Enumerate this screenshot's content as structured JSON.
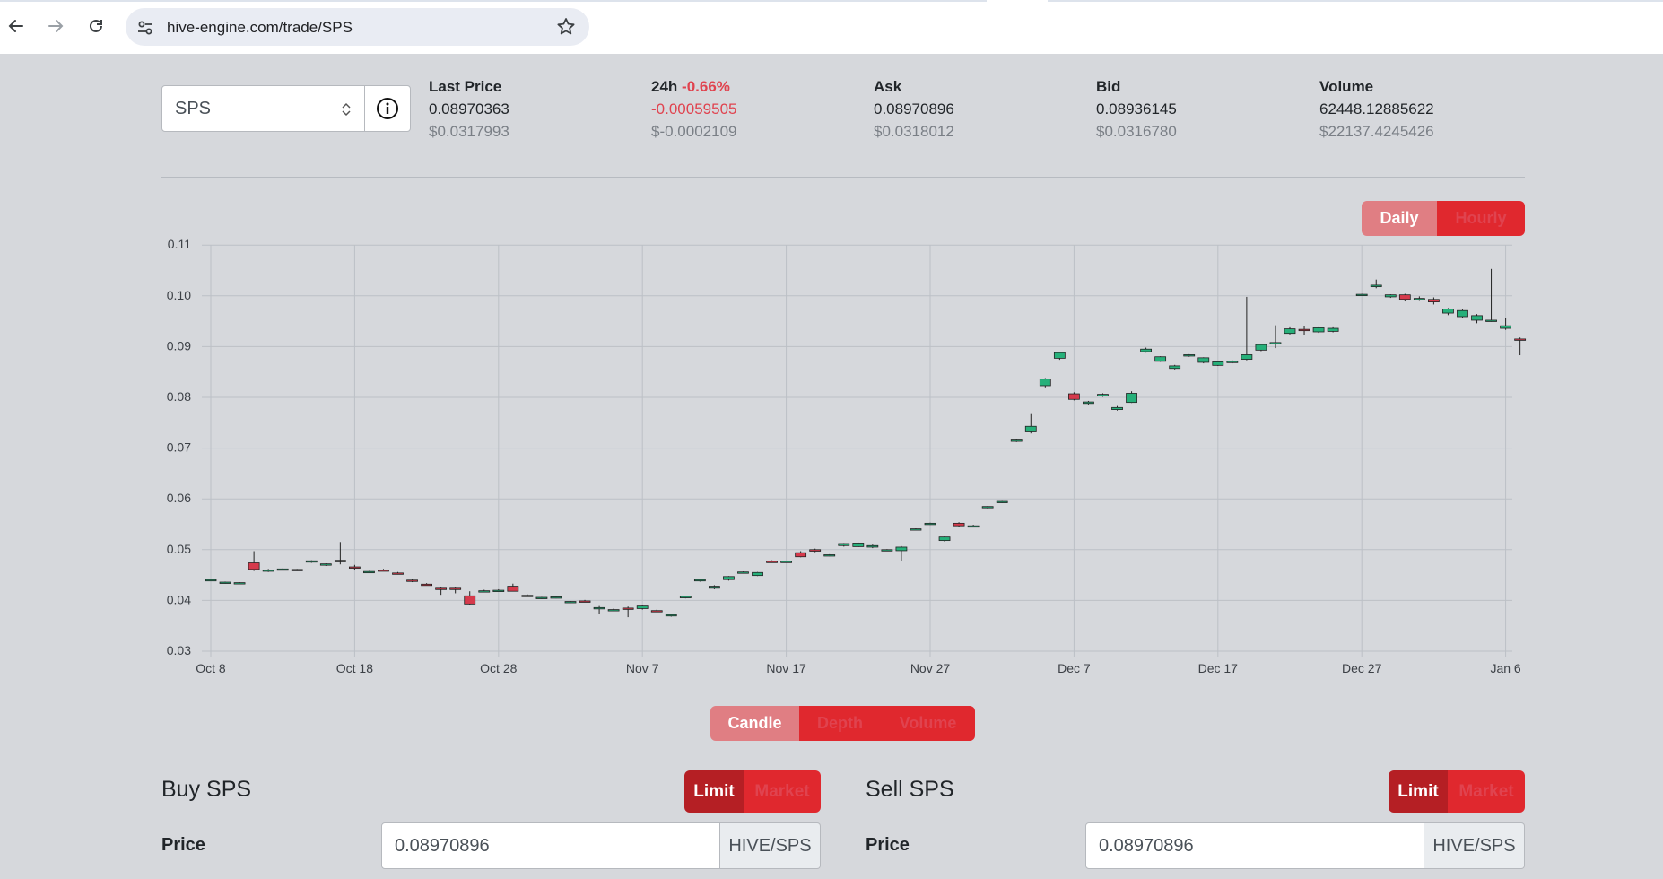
{
  "browser": {
    "url": "hive-engine.com/trade/SPS"
  },
  "market": {
    "token": "SPS",
    "stats": [
      {
        "label": "Last Price",
        "change": "",
        "v1": "0.08970363",
        "v2": "$0.0317993"
      },
      {
        "label": "24h",
        "change": "-0.66%",
        "v1": "-0.00059505",
        "v2": "$-0.0002109"
      },
      {
        "label": "Ask",
        "change": "",
        "v1": "0.08970896",
        "v2": "$0.0318012"
      },
      {
        "label": "Bid",
        "change": "",
        "v1": "0.08936145",
        "v2": "$0.0316780"
      },
      {
        "label": "Volume",
        "change": "",
        "v1": "62448.12885622",
        "v2": "$22137.4245426"
      }
    ]
  },
  "interval_toggle": {
    "daily": "Daily",
    "hourly": "Hourly",
    "active": "Hourly"
  },
  "view_toggle": {
    "candle": "Candle",
    "depth": "Depth",
    "volume": "Volume",
    "active": "Candle"
  },
  "colors": {
    "up": "#26b07a",
    "down": "#d63a4c",
    "accent": "#e0282e"
  },
  "chart_data": {
    "type": "candlestick",
    "title": "",
    "y_ticks": [
      "0.03",
      "0.04",
      "0.05",
      "0.06",
      "0.07",
      "0.08",
      "0.09",
      "0.10",
      "0.11"
    ],
    "ylim": [
      0.03,
      0.11
    ],
    "x_ticks": [
      "Oct 8",
      "Oct 18",
      "Oct 28",
      "Nov 7",
      "Nov 17",
      "Nov 27",
      "Dec 7",
      "Dec 17",
      "Dec 27",
      "Jan 6"
    ],
    "grid": true,
    "candles": [
      {
        "day": 0,
        "o": 0.044,
        "h": 0.0441,
        "l": 0.0438,
        "c": 0.0441
      },
      {
        "day": 1,
        "o": 0.0435,
        "h": 0.0437,
        "l": 0.0433,
        "c": 0.0436
      },
      {
        "day": 2,
        "o": 0.0434,
        "h": 0.0436,
        "l": 0.0432,
        "c": 0.0435
      },
      {
        "day": 3,
        "o": 0.0474,
        "h": 0.0497,
        "l": 0.0458,
        "c": 0.0461
      },
      {
        "day": 4,
        "o": 0.0459,
        "h": 0.0462,
        "l": 0.0456,
        "c": 0.046
      },
      {
        "day": 5,
        "o": 0.0461,
        "h": 0.0463,
        "l": 0.0459,
        "c": 0.0462
      },
      {
        "day": 6,
        "o": 0.046,
        "h": 0.0462,
        "l": 0.0458,
        "c": 0.0461
      },
      {
        "day": 7,
        "o": 0.0476,
        "h": 0.0479,
        "l": 0.0474,
        "c": 0.0478
      },
      {
        "day": 8,
        "o": 0.047,
        "h": 0.0473,
        "l": 0.0468,
        "c": 0.0472
      },
      {
        "day": 9,
        "o": 0.0479,
        "h": 0.0515,
        "l": 0.0471,
        "c": 0.0476
      },
      {
        "day": 10,
        "o": 0.0466,
        "h": 0.047,
        "l": 0.046,
        "c": 0.0464
      },
      {
        "day": 11,
        "o": 0.0456,
        "h": 0.0458,
        "l": 0.0454,
        "c": 0.0457
      },
      {
        "day": 12,
        "o": 0.046,
        "h": 0.0462,
        "l": 0.0458,
        "c": 0.0459
      },
      {
        "day": 13,
        "o": 0.0454,
        "h": 0.0456,
        "l": 0.0451,
        "c": 0.0452
      },
      {
        "day": 14,
        "o": 0.044,
        "h": 0.0443,
        "l": 0.0436,
        "c": 0.0439
      },
      {
        "day": 15,
        "o": 0.0432,
        "h": 0.0434,
        "l": 0.043,
        "c": 0.0431
      },
      {
        "day": 16,
        "o": 0.0424,
        "h": 0.0426,
        "l": 0.0411,
        "c": 0.0423
      },
      {
        "day": 17,
        "o": 0.0424,
        "h": 0.0426,
        "l": 0.0414,
        "c": 0.0422
      },
      {
        "day": 18,
        "o": 0.0409,
        "h": 0.0418,
        "l": 0.0392,
        "c": 0.0393
      },
      {
        "day": 19,
        "o": 0.0418,
        "h": 0.0421,
        "l": 0.0416,
        "c": 0.0419
      },
      {
        "day": 20,
        "o": 0.0419,
        "h": 0.0422,
        "l": 0.0417,
        "c": 0.042
      },
      {
        "day": 21,
        "o": 0.0428,
        "h": 0.0433,
        "l": 0.0418,
        "c": 0.0418
      },
      {
        "day": 22,
        "o": 0.041,
        "h": 0.0412,
        "l": 0.0408,
        "c": 0.0409
      },
      {
        "day": 23,
        "o": 0.0405,
        "h": 0.0407,
        "l": 0.0403,
        "c": 0.0406
      },
      {
        "day": 24,
        "o": 0.0406,
        "h": 0.0409,
        "l": 0.0404,
        "c": 0.0407
      },
      {
        "day": 25,
        "o": 0.0397,
        "h": 0.0399,
        "l": 0.0395,
        "c": 0.0398
      },
      {
        "day": 26,
        "o": 0.0399,
        "h": 0.0401,
        "l": 0.0397,
        "c": 0.0398
      },
      {
        "day": 27,
        "o": 0.0385,
        "h": 0.0389,
        "l": 0.0373,
        "c": 0.0386
      },
      {
        "day": 28,
        "o": 0.0381,
        "h": 0.0384,
        "l": 0.0379,
        "c": 0.0382
      },
      {
        "day": 29,
        "o": 0.0385,
        "h": 0.0388,
        "l": 0.0367,
        "c": 0.0384
      },
      {
        "day": 30,
        "o": 0.0384,
        "h": 0.039,
        "l": 0.0382,
        "c": 0.0389
      },
      {
        "day": 31,
        "o": 0.038,
        "h": 0.0382,
        "l": 0.0378,
        "c": 0.0379
      },
      {
        "day": 32,
        "o": 0.0371,
        "h": 0.0373,
        "l": 0.0368,
        "c": 0.0372
      },
      {
        "day": 33,
        "o": 0.0405,
        "h": 0.0409,
        "l": 0.0404,
        "c": 0.0408
      },
      {
        "day": 34,
        "o": 0.0439,
        "h": 0.0442,
        "l": 0.0437,
        "c": 0.0441
      },
      {
        "day": 35,
        "o": 0.0424,
        "h": 0.043,
        "l": 0.0422,
        "c": 0.0428
      },
      {
        "day": 36,
        "o": 0.0441,
        "h": 0.0448,
        "l": 0.0439,
        "c": 0.0447
      },
      {
        "day": 37,
        "o": 0.0455,
        "h": 0.0457,
        "l": 0.0453,
        "c": 0.0456
      },
      {
        "day": 38,
        "o": 0.0449,
        "h": 0.0456,
        "l": 0.0448,
        "c": 0.0455
      },
      {
        "day": 39,
        "o": 0.0477,
        "h": 0.0479,
        "l": 0.0474,
        "c": 0.0475
      },
      {
        "day": 40,
        "o": 0.0476,
        "h": 0.0478,
        "l": 0.0474,
        "c": 0.0477
      },
      {
        "day": 41,
        "o": 0.0494,
        "h": 0.0497,
        "l": 0.0485,
        "c": 0.0486
      },
      {
        "day": 42,
        "o": 0.05,
        "h": 0.0502,
        "l": 0.0495,
        "c": 0.0497
      },
      {
        "day": 43,
        "o": 0.0489,
        "h": 0.0491,
        "l": 0.0487,
        "c": 0.049
      },
      {
        "day": 44,
        "o": 0.0508,
        "h": 0.0513,
        "l": 0.0506,
        "c": 0.0512
      },
      {
        "day": 45,
        "o": 0.0506,
        "h": 0.0514,
        "l": 0.0505,
        "c": 0.0513
      },
      {
        "day": 46,
        "o": 0.0505,
        "h": 0.051,
        "l": 0.0503,
        "c": 0.0508
      },
      {
        "day": 47,
        "o": 0.0499,
        "h": 0.0501,
        "l": 0.0497,
        "c": 0.05
      },
      {
        "day": 48,
        "o": 0.0498,
        "h": 0.0507,
        "l": 0.0478,
        "c": 0.0505
      },
      {
        "day": 49,
        "o": 0.054,
        "h": 0.0542,
        "l": 0.0538,
        "c": 0.0541
      },
      {
        "day": 50,
        "o": 0.0551,
        "h": 0.0553,
        "l": 0.0549,
        "c": 0.0552
      },
      {
        "day": 51,
        "o": 0.0518,
        "h": 0.0526,
        "l": 0.0516,
        "c": 0.0525
      },
      {
        "day": 52,
        "o": 0.0552,
        "h": 0.0554,
        "l": 0.0545,
        "c": 0.0547
      },
      {
        "day": 53,
        "o": 0.0546,
        "h": 0.0549,
        "l": 0.0544,
        "c": 0.0547
      },
      {
        "day": 54,
        "o": 0.0583,
        "h": 0.0586,
        "l": 0.0581,
        "c": 0.0585
      },
      {
        "day": 55,
        "o": 0.0593,
        "h": 0.0596,
        "l": 0.0592,
        "c": 0.0595
      },
      {
        "day": 56,
        "o": 0.0715,
        "h": 0.0718,
        "l": 0.0712,
        "c": 0.0716
      },
      {
        "day": 57,
        "o": 0.0732,
        "h": 0.0767,
        "l": 0.0729,
        "c": 0.0743
      },
      {
        "day": 58,
        "o": 0.0823,
        "h": 0.0838,
        "l": 0.0818,
        "c": 0.0836
      },
      {
        "day": 59,
        "o": 0.0877,
        "h": 0.089,
        "l": 0.0874,
        "c": 0.0888
      },
      {
        "day": 60,
        "o": 0.0807,
        "h": 0.081,
        "l": 0.0794,
        "c": 0.0796
      },
      {
        "day": 61,
        "o": 0.0788,
        "h": 0.0793,
        "l": 0.0786,
        "c": 0.0791
      },
      {
        "day": 62,
        "o": 0.0803,
        "h": 0.0808,
        "l": 0.0801,
        "c": 0.0806
      },
      {
        "day": 63,
        "o": 0.0776,
        "h": 0.0783,
        "l": 0.0774,
        "c": 0.078
      },
      {
        "day": 64,
        "o": 0.079,
        "h": 0.0812,
        "l": 0.0789,
        "c": 0.0808
      },
      {
        "day": 65,
        "o": 0.089,
        "h": 0.0898,
        "l": 0.0888,
        "c": 0.0895
      },
      {
        "day": 66,
        "o": 0.0871,
        "h": 0.0881,
        "l": 0.087,
        "c": 0.088
      },
      {
        "day": 67,
        "o": 0.0857,
        "h": 0.0864,
        "l": 0.0855,
        "c": 0.0862
      },
      {
        "day": 68,
        "o": 0.0882,
        "h": 0.0885,
        "l": 0.088,
        "c": 0.0884
      },
      {
        "day": 69,
        "o": 0.0869,
        "h": 0.0879,
        "l": 0.0867,
        "c": 0.0878
      },
      {
        "day": 70,
        "o": 0.0863,
        "h": 0.0871,
        "l": 0.0862,
        "c": 0.087
      },
      {
        "day": 71,
        "o": 0.0869,
        "h": 0.0873,
        "l": 0.0867,
        "c": 0.0871
      },
      {
        "day": 72,
        "o": 0.0875,
        "h": 0.0998,
        "l": 0.0873,
        "c": 0.0884
      },
      {
        "day": 73,
        "o": 0.0893,
        "h": 0.0905,
        "l": 0.0891,
        "c": 0.0904
      },
      {
        "day": 74,
        "o": 0.0905,
        "h": 0.0942,
        "l": 0.0897,
        "c": 0.0908
      },
      {
        "day": 75,
        "o": 0.0926,
        "h": 0.0938,
        "l": 0.0924,
        "c": 0.0935
      },
      {
        "day": 76,
        "o": 0.0934,
        "h": 0.0941,
        "l": 0.0922,
        "c": 0.0933
      },
      {
        "day": 77,
        "o": 0.0929,
        "h": 0.0938,
        "l": 0.0927,
        "c": 0.0937
      },
      {
        "day": 78,
        "o": 0.093,
        "h": 0.0938,
        "l": 0.0928,
        "c": 0.0936
      },
      {
        "day": 80,
        "o": 0.1002,
        "h": 0.1004,
        "l": 0.1,
        "c": 0.1003
      },
      {
        "day": 81,
        "o": 0.1018,
        "h": 0.1032,
        "l": 0.1015,
        "c": 0.1021
      },
      {
        "day": 82,
        "o": 0.0998,
        "h": 0.1003,
        "l": 0.0996,
        "c": 0.1002
      },
      {
        "day": 83,
        "o": 0.1002,
        "h": 0.1004,
        "l": 0.0989,
        "c": 0.0993
      },
      {
        "day": 84,
        "o": 0.0993,
        "h": 0.0999,
        "l": 0.099,
        "c": 0.0995
      },
      {
        "day": 85,
        "o": 0.0993,
        "h": 0.0997,
        "l": 0.0983,
        "c": 0.0988
      },
      {
        "day": 86,
        "o": 0.0966,
        "h": 0.0976,
        "l": 0.0962,
        "c": 0.0974
      },
      {
        "day": 87,
        "o": 0.0959,
        "h": 0.0973,
        "l": 0.0956,
        "c": 0.0971
      },
      {
        "day": 88,
        "o": 0.0952,
        "h": 0.0964,
        "l": 0.0946,
        "c": 0.0961
      },
      {
        "day": 89,
        "o": 0.095,
        "h": 0.1053,
        "l": 0.0949,
        "c": 0.0952
      },
      {
        "day": 90,
        "o": 0.0936,
        "h": 0.0956,
        "l": 0.0933,
        "c": 0.0941
      },
      {
        "day": 91,
        "o": 0.0915,
        "h": 0.0918,
        "l": 0.0883,
        "c": 0.0914
      }
    ]
  },
  "buy": {
    "title": "Buy SPS",
    "limit": "Limit",
    "market": "Market",
    "price_label": "Price",
    "price_value": "0.08970896",
    "unit": "HIVE/SPS"
  },
  "sell": {
    "title": "Sell SPS",
    "limit": "Limit",
    "market": "Market",
    "price_label": "Price",
    "price_value": "0.08970896",
    "unit": "HIVE/SPS"
  }
}
